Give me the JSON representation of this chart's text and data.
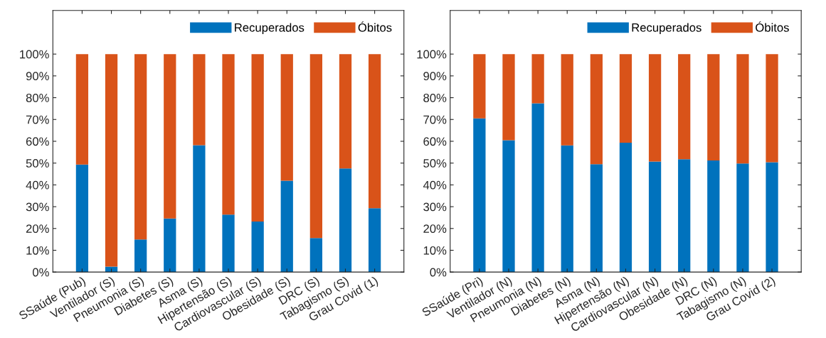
{
  "chart_data": [
    {
      "type": "bar",
      "stacked": true,
      "categories": [
        "SSaúde (Pub)",
        "Ventilador (S)",
        "Pneumonia (S)",
        "Diabetes (S)",
        "Asma (S)",
        "Hipertensão (S)",
        "Cardiovascular (S)",
        "Obesidade (S)",
        "DRC (S)",
        "Tabagismo (S)",
        "Grau Covid (1)"
      ],
      "series": [
        {
          "name": "Recuperados",
          "color": "#0072bd",
          "values": [
            49.3,
            2.5,
            15.0,
            24.6,
            58.2,
            26.4,
            23.2,
            41.9,
            15.6,
            47.5,
            29.3
          ]
        },
        {
          "name": "Óbitos",
          "color": "#d95319",
          "values": [
            50.7,
            97.5,
            85.0,
            75.4,
            41.8,
            73.6,
            76.8,
            58.1,
            84.4,
            52.5,
            70.7
          ]
        }
      ],
      "ylim": [
        0,
        120
      ],
      "yticks": [
        {
          "value": 0,
          "label": "0%"
        },
        {
          "value": 10,
          "label": "10%"
        },
        {
          "value": 20,
          "label": "20%"
        },
        {
          "value": 30,
          "label": "30%"
        },
        {
          "value": 40,
          "label": "40%"
        },
        {
          "value": 50,
          "label": "50%"
        },
        {
          "value": 60,
          "label": "60%"
        },
        {
          "value": 70,
          "label": "70%"
        },
        {
          "value": 80,
          "label": "80%"
        },
        {
          "value": 90,
          "label": "90%"
        },
        {
          "value": 100,
          "label": "100%"
        }
      ],
      "legend": "top right",
      "grid": false
    },
    {
      "type": "bar",
      "stacked": true,
      "categories": [
        "SSaúde (Pri)",
        "Ventilador (N)",
        "Pneumonia (N)",
        "Diabetes (N)",
        "Asma (N)",
        "Hipertensão (N)",
        "Cardiovascular (N)",
        "Obesidade (N)",
        "DRC (N)",
        "Tabagismo (N)",
        "Grau Covid (2)"
      ],
      "series": [
        {
          "name": "Recuperados",
          "color": "#0072bd",
          "values": [
            70.5,
            60.5,
            77.4,
            58.1,
            49.5,
            59.3,
            50.7,
            51.8,
            51.2,
            49.8,
            50.4
          ]
        },
        {
          "name": "Óbitos",
          "color": "#d95319",
          "values": [
            29.5,
            39.5,
            22.6,
            41.9,
            50.5,
            40.7,
            49.3,
            48.2,
            48.8,
            50.2,
            49.6
          ]
        }
      ],
      "ylim": [
        0,
        120
      ],
      "yticks": [
        {
          "value": 0,
          "label": "0%"
        },
        {
          "value": 10,
          "label": "10%"
        },
        {
          "value": 20,
          "label": "20%"
        },
        {
          "value": 30,
          "label": "30%"
        },
        {
          "value": 40,
          "label": "40%"
        },
        {
          "value": 50,
          "label": "50%"
        },
        {
          "value": 60,
          "label": "60%"
        },
        {
          "value": 70,
          "label": "70%"
        },
        {
          "value": 80,
          "label": "80%"
        },
        {
          "value": 90,
          "label": "90%"
        },
        {
          "value": 100,
          "label": "100%"
        }
      ],
      "legend": "top right",
      "grid": false
    }
  ]
}
